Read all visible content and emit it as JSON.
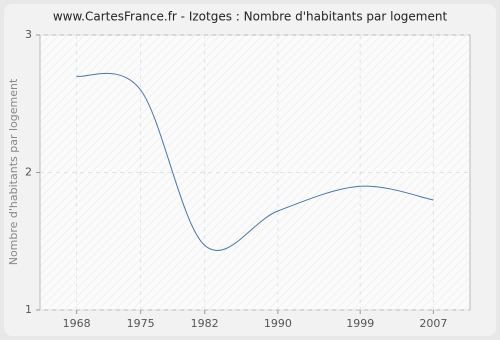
{
  "chart_data": {
    "type": "line",
    "title": "www.CartesFrance.fr - Izotges : Nombre d'habitants par logement",
    "y_label": "Nombre d'habitants par logement",
    "x": [
      1968,
      1975,
      1982,
      1990,
      1999,
      2007
    ],
    "series": [
      {
        "name": "Izotges",
        "color": "#4a76a8",
        "values": [
          2.7,
          2.6,
          1.47,
          1.72,
          1.9,
          1.8
        ]
      }
    ],
    "xlim": [
      1964,
      2011
    ],
    "xticks": [
      1968,
      1975,
      1982,
      1990,
      1999,
      2007
    ],
    "ylim": [
      1,
      3
    ],
    "yticks": [
      1,
      2,
      3
    ],
    "grid": true
  }
}
